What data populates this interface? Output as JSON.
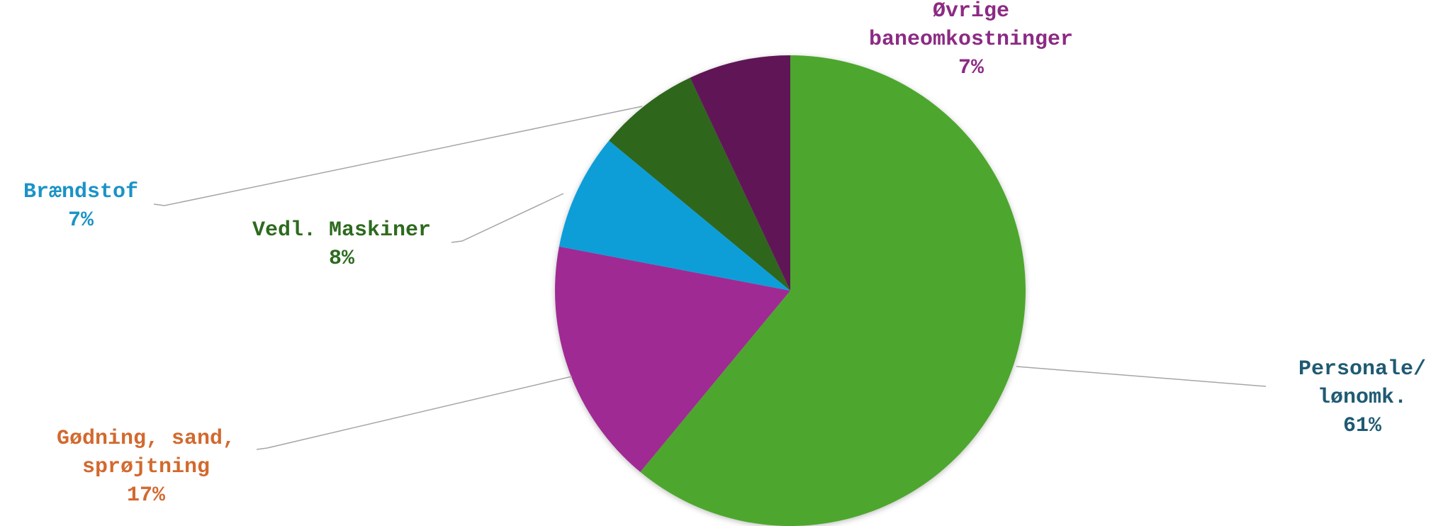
{
  "chart_data": {
    "type": "pie",
    "title": "",
    "start_angle_deg": 0,
    "direction": "clockwise",
    "slices": [
      {
        "label_lines": [
          "Personale/",
          "lønomk."
        ],
        "pct_label": "61%",
        "value": 61,
        "color": "#4ea72e",
        "label_color": "#1f5a73"
      },
      {
        "label_lines": [
          "Gødning, sand,",
          "sprøjtning"
        ],
        "pct_label": "17%",
        "value": 17,
        "color": "#a02b93",
        "label_color": "#d2692e"
      },
      {
        "label_lines": [
          "Vedl. Maskiner"
        ],
        "pct_label": "8%",
        "value": 8,
        "color": "#119ed8",
        "label_color": "#2d6a1e"
      },
      {
        "label_lines": [
          "Brændstof"
        ],
        "pct_label": "7%",
        "value": 7,
        "color": "#2e661f",
        "label_color": "#1a93c7"
      },
      {
        "label_lines": [
          "Øvrige",
          "baneomkostninger"
        ],
        "pct_label": "7%",
        "value": 7,
        "color": "#611956",
        "label_color": "#8c2a83"
      }
    ]
  }
}
